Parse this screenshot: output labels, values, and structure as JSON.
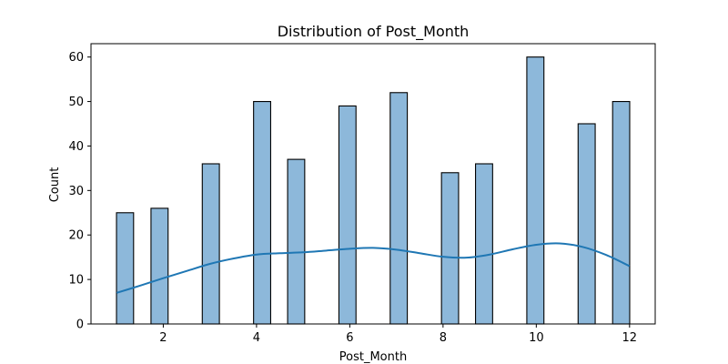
{
  "chart_data": {
    "type": "bar",
    "title": "Distribution of Post_Month",
    "xlabel": "Post_Month",
    "ylabel": "Count",
    "xlim": [
      0.45,
      12.55
    ],
    "ylim": [
      0,
      63
    ],
    "xticks": [
      2,
      4,
      6,
      8,
      10,
      12
    ],
    "yticks": [
      0,
      10,
      20,
      30,
      40,
      50,
      60
    ],
    "bar_width": 0.3667,
    "bars": [
      {
        "x": 1.18,
        "value": 25
      },
      {
        "x": 1.92,
        "value": 26
      },
      {
        "x": 3.02,
        "value": 36
      },
      {
        "x": 4.12,
        "value": 50
      },
      {
        "x": 4.85,
        "value": 37
      },
      {
        "x": 5.95,
        "value": 49
      },
      {
        "x": 7.05,
        "value": 52
      },
      {
        "x": 8.15,
        "value": 34
      },
      {
        "x": 8.88,
        "value": 36
      },
      {
        "x": 9.98,
        "value": 60
      },
      {
        "x": 11.08,
        "value": 45
      },
      {
        "x": 11.82,
        "value": 50
      }
    ],
    "kde": {
      "x": [
        1,
        1.5,
        2,
        2.5,
        3,
        3.5,
        4,
        4.5,
        5,
        5.5,
        6,
        6.5,
        7,
        7.5,
        8,
        8.5,
        9,
        9.5,
        10,
        10.5,
        11,
        11.5,
        12
      ],
      "y": [
        7,
        8.6,
        10.3,
        11.9,
        13.5,
        14.7,
        15.6,
        15.9,
        16.1,
        16.5,
        16.9,
        17.1,
        16.7,
        15.9,
        15.1,
        14.9,
        15.6,
        16.8,
        17.8,
        18.1,
        17.3,
        15.5,
        13
      ]
    },
    "grid": false,
    "colors": {
      "bar_fill": "#8db8da",
      "bar_edge": "#000000",
      "kde_line": "#1f77b4"
    }
  }
}
